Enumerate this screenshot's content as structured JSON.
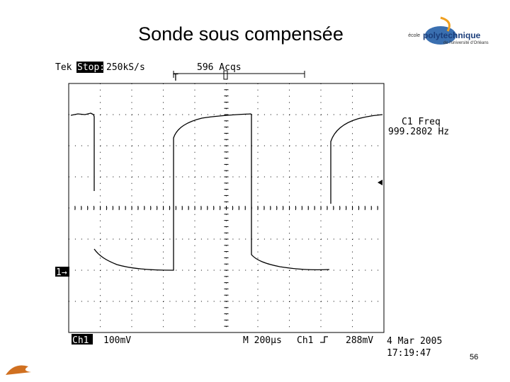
{
  "slide": {
    "title": "Sonde sous compensée",
    "page_number": "56"
  },
  "logo": {
    "prefix": "école",
    "name": "polytechnique",
    "subtitle": "de l'université d'Orléans"
  },
  "scope": {
    "header": {
      "brand": "Tek",
      "state": "Stop:",
      "sample_rate": "250kS/s",
      "acquisitions": "596 Acqs",
      "trigger_marker": "T"
    },
    "measurement": {
      "label": "C1 Freq",
      "value": "999.2802 Hz"
    },
    "channel_marker": "1→",
    "footer": {
      "channel": "Ch1",
      "volts_per_div": "100mV",
      "timebase": "M 200µs",
      "trigger_source": "Ch1",
      "trigger_level": "288mV",
      "date": "4 Mar 2005",
      "time": "17:19:47"
    }
  }
}
